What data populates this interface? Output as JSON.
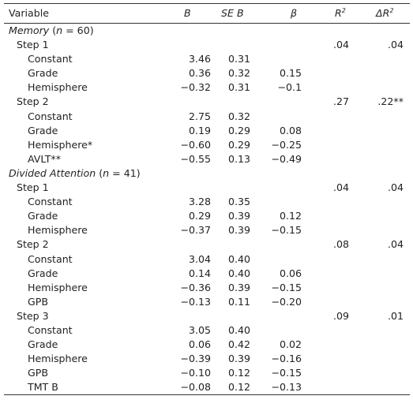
{
  "header": {
    "variable": "Variable",
    "b": "B",
    "se_b": "SE B",
    "beta": "β",
    "r2": "R",
    "r2_sup": "2",
    "dr2": "ΔR",
    "dr2_sup": "2"
  },
  "sections": {
    "memory": {
      "label_main": "Memory",
      "label_n": " (n = 60)",
      "step1": {
        "label": "Step 1",
        "r2": ".04",
        "dr2": ".04",
        "rows": [
          {
            "name": "Constant",
            "b": "3.46",
            "se": "0.31",
            "beta": ""
          },
          {
            "name": "Grade",
            "b": "0.36",
            "se": "0.32",
            "beta": "0.15"
          },
          {
            "name": "Hemisphere",
            "b": "−0.32",
            "se": "0.31",
            "beta": "−0.1"
          }
        ]
      },
      "step2": {
        "label": "Step 2",
        "r2": ".27",
        "dr2": ".22**",
        "rows": [
          {
            "name": "Constant",
            "b": "2.75",
            "se": "0.32",
            "beta": ""
          },
          {
            "name": "Grade",
            "b": "0.19",
            "se": "0.29",
            "beta": "0.08"
          },
          {
            "name": "Hemisphere*",
            "b": "−0.60",
            "se": "0.29",
            "beta": "−0.25"
          },
          {
            "name": "AVLT**",
            "b": "−0.55",
            "se": "0.13",
            "beta": "−0.49"
          }
        ]
      }
    },
    "divided": {
      "label_main": "Divided Attention",
      "label_n": " (n = 41)",
      "step1": {
        "label": "Step 1",
        "r2": ".04",
        "dr2": ".04",
        "rows": [
          {
            "name": "Constant",
            "b": "3.28",
            "se": "0.35",
            "beta": ""
          },
          {
            "name": "Grade",
            "b": "0.29",
            "se": "0.39",
            "beta": "0.12"
          },
          {
            "name": "Hemisphere",
            "b": "−0.37",
            "se": "0.39",
            "beta": "−0.15"
          }
        ]
      },
      "step2": {
        "label": "Step 2",
        "r2": ".08",
        "dr2": ".04",
        "rows": [
          {
            "name": "Constant",
            "b": "3.04",
            "se": "0.40",
            "beta": ""
          },
          {
            "name": "Grade",
            "b": "0.14",
            "se": "0.40",
            "beta": "0.06"
          },
          {
            "name": "Hemisphere",
            "b": "−0.36",
            "se": "0.39",
            "beta": "−0.15"
          },
          {
            "name": "GPB",
            "b": "−0.13",
            "se": "0.11",
            "beta": "−0.20"
          }
        ]
      },
      "step3": {
        "label": "Step 3",
        "r2": ".09",
        "dr2": ".01",
        "rows": [
          {
            "name": "Constant",
            "b": "3.05",
            "se": "0.40",
            "beta": ""
          },
          {
            "name": "Grade",
            "b": "0.06",
            "se": "0.42",
            "beta": "0.02"
          },
          {
            "name": "Hemisphere",
            "b": "−0.39",
            "se": "0.39",
            "beta": "−0.16"
          },
          {
            "name": "GPB",
            "b": "−0.10",
            "se": "0.12",
            "beta": "−0.15"
          },
          {
            "name": "TMT B",
            "b": "−0.08",
            "se": "0.12",
            "beta": "−0.13"
          }
        ]
      }
    }
  }
}
